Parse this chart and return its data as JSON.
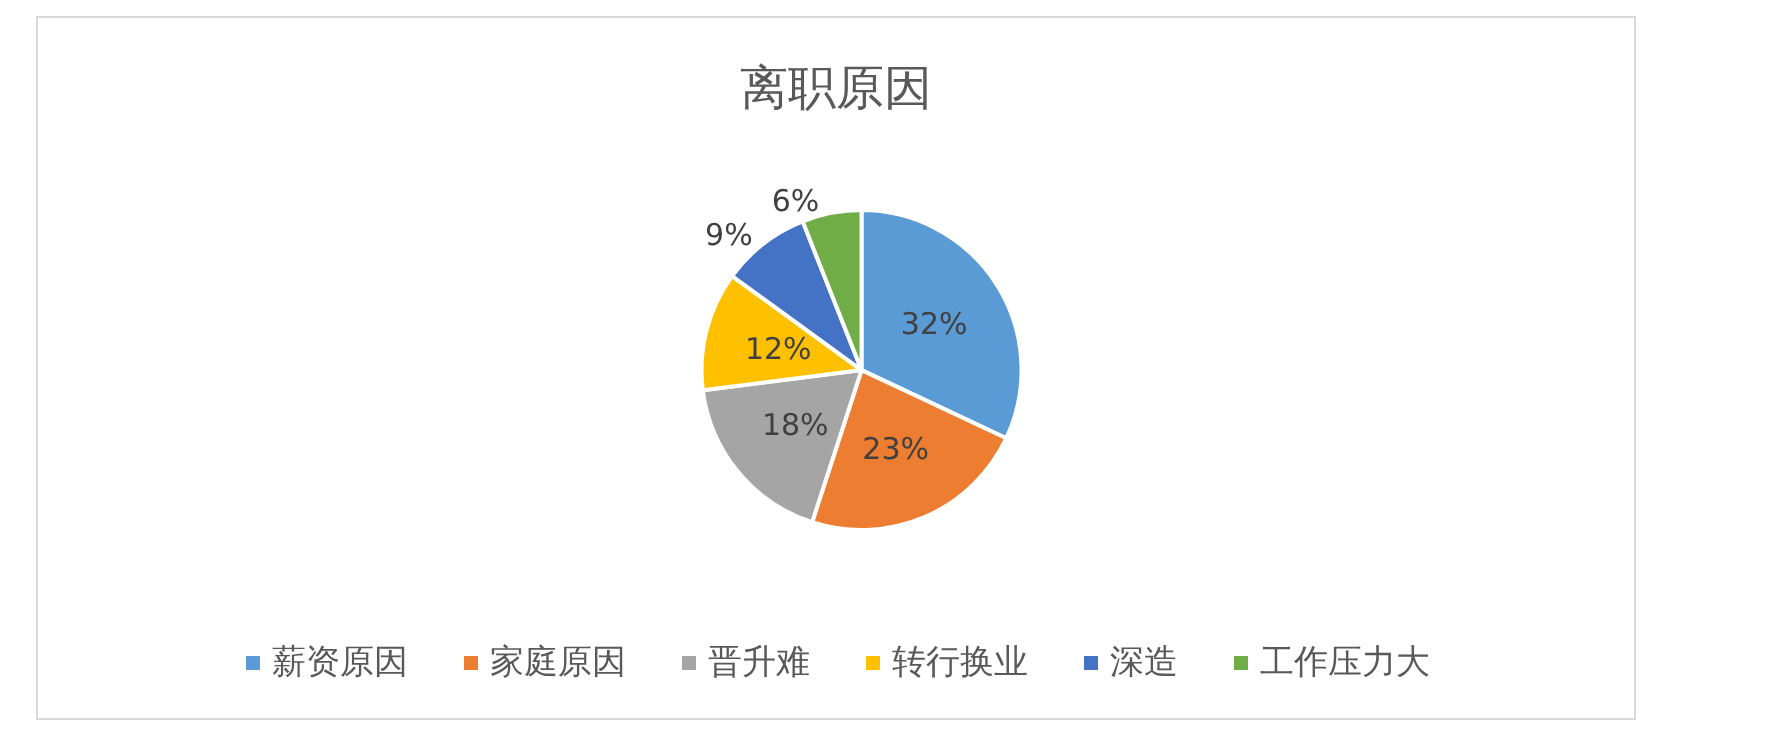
{
  "chart_data": {
    "type": "pie",
    "title": "离职原因",
    "categories": [
      "薪资原因",
      "家庭原因",
      "晋升难",
      "转行换业",
      "深造",
      "工作压力大"
    ],
    "values": [
      32,
      23,
      18,
      12,
      9,
      6
    ],
    "value_labels": [
      "32%",
      "23%",
      "18%",
      "12%",
      "9%",
      "6%"
    ],
    "colors": [
      "#5b9bd5",
      "#ed7d31",
      "#a5a5a5",
      "#ffc000",
      "#4472c4",
      "#70ad47"
    ],
    "legend": "bottom"
  }
}
